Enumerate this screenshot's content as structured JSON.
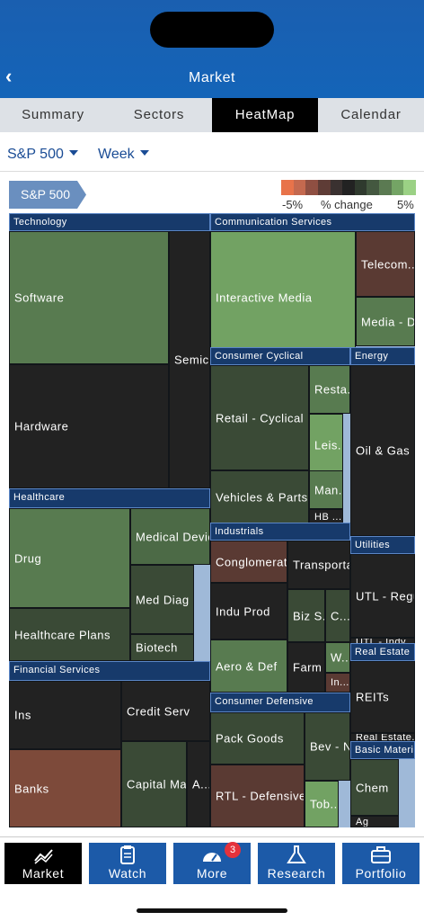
{
  "header": {
    "title": "Market",
    "back_icon": "chevron-left-icon"
  },
  "tabs": [
    {
      "label": "Summary",
      "active": false
    },
    {
      "label": "Sectors",
      "active": false
    },
    {
      "label": "HeatMap",
      "active": true
    },
    {
      "label": "Calendar",
      "active": false
    }
  ],
  "filters": {
    "index": "S&P 500",
    "period": "Week"
  },
  "index_tag": "S&P 500",
  "legend": {
    "min_label": "-5%",
    "mid_label": "% change",
    "max_label": "5%",
    "colors": [
      "#e8734a",
      "#c4694f",
      "#8f4f42",
      "#5e3c36",
      "#3a3130",
      "#222222",
      "#2f3a2e",
      "#445840",
      "#5b7a52",
      "#74a465",
      "#9bd185"
    ]
  },
  "sectors": [
    {
      "name": "Technology",
      "industries": [
        {
          "name": "Software",
          "color": "#587b50"
        },
        {
          "name": "Semic...",
          "color": "#222222"
        },
        {
          "name": "Hardware",
          "color": "#222222"
        }
      ]
    },
    {
      "name": "Communication Services",
      "industries": [
        {
          "name": "Interactive Media",
          "color": "#72a263"
        },
        {
          "name": "Telecom...",
          "color": "#5a3a33"
        },
        {
          "name": "Media - D...",
          "color": "#587b50"
        }
      ]
    },
    {
      "name": "Consumer Cyclical",
      "industries": [
        {
          "name": "Retail - Cyclical",
          "color": "#3a4a36"
        },
        {
          "name": "Resta...",
          "color": "#587b50"
        },
        {
          "name": "Leis...",
          "color": "#72a263"
        },
        {
          "name": "Man...",
          "color": "#587b50"
        },
        {
          "name": "Vehicles & Parts",
          "color": "#3a4a36"
        },
        {
          "name": "HB ...",
          "color": "#222222"
        }
      ]
    },
    {
      "name": "Energy",
      "industries": [
        {
          "name": "Oil & Gas",
          "color": "#222222"
        }
      ]
    },
    {
      "name": "Healthcare",
      "industries": [
        {
          "name": "Drug",
          "color": "#587b50"
        },
        {
          "name": "Medical Devic...",
          "color": "#4c6a46"
        },
        {
          "name": "Med Diag",
          "color": "#3a4a36"
        },
        {
          "name": "Healthcare Plans",
          "color": "#3a4a36"
        },
        {
          "name": "Biotech",
          "color": "#3a4a36"
        }
      ]
    },
    {
      "name": "Industrials",
      "industries": [
        {
          "name": "Conglomerates",
          "color": "#5a3a33"
        },
        {
          "name": "Transporta...",
          "color": "#222222"
        },
        {
          "name": "Indu Prod",
          "color": "#222222"
        },
        {
          "name": "Biz S...",
          "color": "#3a4a36"
        },
        {
          "name": "C...",
          "color": "#3a4a36"
        },
        {
          "name": "Aero & Def",
          "color": "#587b50"
        },
        {
          "name": "Farm ...",
          "color": "#222222"
        },
        {
          "name": "W...",
          "color": "#587b50"
        },
        {
          "name": "In...",
          "color": "#5a3a33"
        }
      ]
    },
    {
      "name": "Utilities",
      "industries": [
        {
          "name": "UTL - Regu...",
          "color": "#222222"
        },
        {
          "name": "UTL - Indy...",
          "color": "#222222"
        }
      ]
    },
    {
      "name": "Financial Services",
      "industries": [
        {
          "name": "Ins",
          "color": "#222222"
        },
        {
          "name": "Credit Serv",
          "color": "#222222"
        },
        {
          "name": "Banks",
          "color": "#7d4a3a"
        },
        {
          "name": "Capital Markets",
          "color": "#3a4a36"
        },
        {
          "name": "A...",
          "color": "#222222"
        }
      ]
    },
    {
      "name": "Real Estate",
      "industries": [
        {
          "name": "REITs",
          "color": "#222222"
        },
        {
          "name": "Real Estate...",
          "color": "#222222"
        }
      ]
    },
    {
      "name": "Consumer Defensive",
      "industries": [
        {
          "name": "Pack Goods",
          "color": "#3a4a36"
        },
        {
          "name": "Bev - Non-A",
          "color": "#3a4a36"
        },
        {
          "name": "RTL - Defensive",
          "color": "#5a3a33"
        },
        {
          "name": "Tob...",
          "color": "#72a263"
        }
      ]
    },
    {
      "name": "Basic Materi...",
      "industries": [
        {
          "name": "Chem",
          "color": "#3a4a36"
        },
        {
          "name": "Ag",
          "color": "#222222"
        }
      ]
    }
  ],
  "nav": [
    {
      "label": "Market",
      "icon": "chart-line-icon",
      "active": true
    },
    {
      "label": "Watch",
      "icon": "clipboard-icon",
      "active": false
    },
    {
      "label": "More",
      "icon": "gauge-icon",
      "active": false,
      "badge": "3"
    },
    {
      "label": "Research",
      "icon": "flask-icon",
      "active": false
    },
    {
      "label": "Portfolio",
      "icon": "briefcase-icon",
      "active": false
    }
  ]
}
